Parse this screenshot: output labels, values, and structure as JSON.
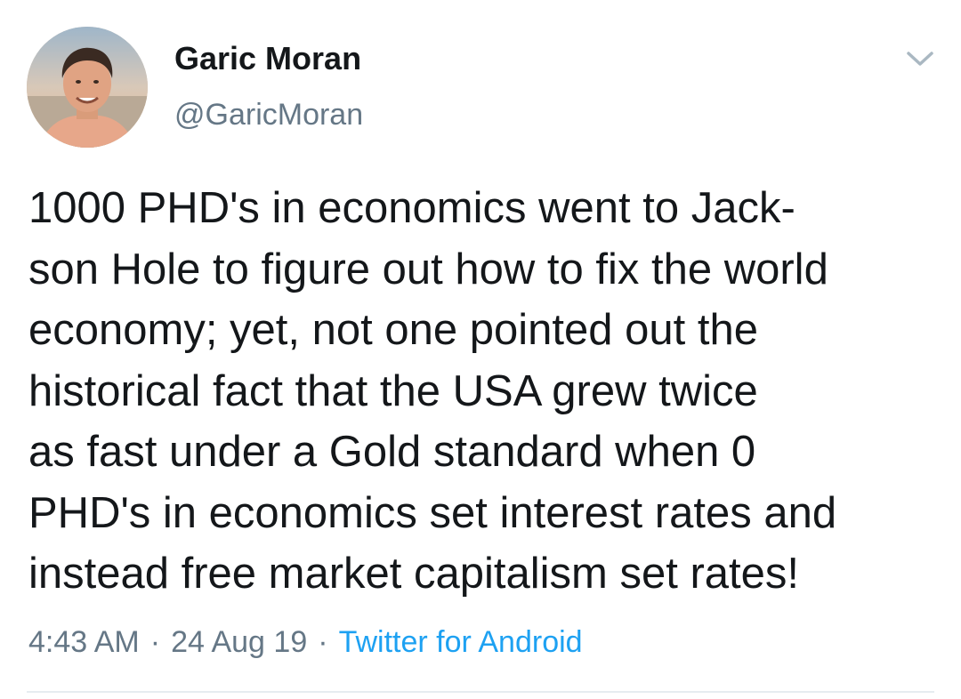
{
  "author": {
    "display_name": "Garic Moran",
    "handle": "@GaricMoran",
    "avatar_icon": "profile-photo"
  },
  "menu_icon": "chevron-down-icon",
  "tweet": {
    "lines": [
      "1000 PHD's in economics went to Jack-",
      "son Hole to figure out how to fix the world",
      "economy; yet, not one pointed out the",
      "historical fact that the USA grew twice",
      "as fast under a Gold standard when 0",
      "PHD's in economics set interest rates and",
      "instead free market capitalism set rates!"
    ]
  },
  "meta": {
    "time": "4:43 AM",
    "separator": "·",
    "date": "24 Aug 19",
    "source": "Twitter for Android"
  },
  "colors": {
    "text": "#14171a",
    "secondary": "#657786",
    "link": "#1da1f2",
    "divider": "#e6ecf0"
  }
}
